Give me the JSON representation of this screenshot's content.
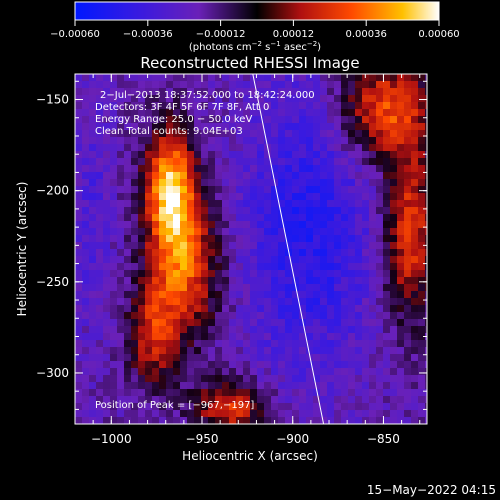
{
  "colorbar": {
    "tick_labels": [
      "−0.00060",
      "−0.00036",
      "−0.00012",
      "0.00012",
      "0.00036",
      "0.00060"
    ],
    "tick_values": [
      -0.0006,
      -0.00036,
      -0.00012,
      0.00012,
      0.00036,
      0.0006
    ],
    "range": [
      -0.0006,
      0.0006
    ],
    "unit_main": "(photons cm",
    "unit_exp1": "−2",
    "unit_mid": " s",
    "unit_exp2": "−1",
    "unit_end": " asec",
    "unit_exp3": "−2",
    "unit_close": ")"
  },
  "chart_data": {
    "type": "heatmap",
    "title": "Reconstructed RHESSI Image",
    "xlabel": "Heliocentric X (arcsec)",
    "ylabel": "Heliocentric Y (arcsec)",
    "xlim": [
      -1020,
      -826
    ],
    "ylim": [
      -328,
      -136
    ],
    "x_ticks": [
      -1000,
      -950,
      -900,
      -850
    ],
    "x_tick_labels": [
      "−1000",
      "−950",
      "−900",
      "−850"
    ],
    "y_ticks": [
      -150,
      -200,
      -250,
      -300
    ],
    "y_tick_labels": [
      "−150",
      "−200",
      "−250",
      "−300"
    ],
    "annotations": {
      "time_range": "2−Jul−2013 18:37:52.000 to 18:42:24.000",
      "detectors": "Detectors: 3F 4F 5F 6F 7F 8F, Att 0",
      "energy": "Energy Range: 25.0 − 50.0 keV",
      "clean": "Clean    Total counts: 9.04E+03",
      "peak": "Position of Peak = [−967,−197]"
    },
    "peak_position": [
      -967,
      -197
    ],
    "limb_line": [
      [
        -922,
        -136
      ],
      [
        -883,
        -328
      ]
    ]
  },
  "footer": {
    "date": "15−May−2022 04:15"
  }
}
